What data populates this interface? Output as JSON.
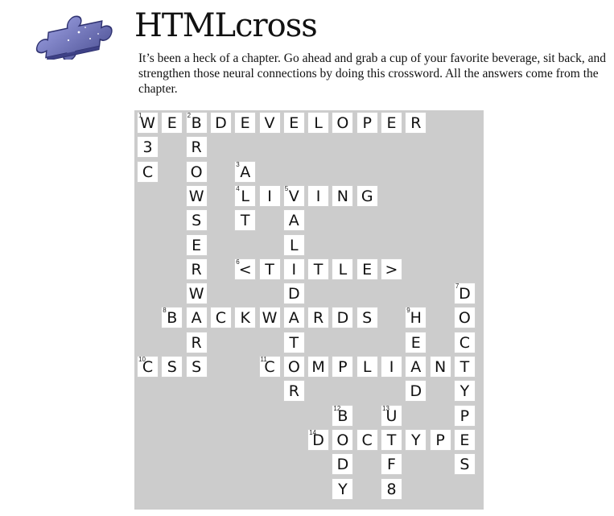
{
  "header": {
    "title": "HTMLcross",
    "intro": "It’s been a heck of a chapter. Go ahead and grab a cup of your favorite beverage, sit back, and strengthen those neural connections by doing this crossword. All the answers come from the chapter."
  },
  "logo": {
    "icon": "puzzle-piece-icon",
    "color": "#6b6fb8"
  },
  "colors": {
    "board": "#cccccc",
    "cell": "#ffffff"
  },
  "puzzle": {
    "cells": [
      {
        "r": 0,
        "c": 0,
        "l": "W",
        "n": "1"
      },
      {
        "r": 0,
        "c": 1,
        "l": "E"
      },
      {
        "r": 0,
        "c": 2,
        "l": "B",
        "n": "2"
      },
      {
        "r": 0,
        "c": 3,
        "l": "D"
      },
      {
        "r": 0,
        "c": 4,
        "l": "E"
      },
      {
        "r": 0,
        "c": 5,
        "l": "V"
      },
      {
        "r": 0,
        "c": 6,
        "l": "E"
      },
      {
        "r": 0,
        "c": 7,
        "l": "L"
      },
      {
        "r": 0,
        "c": 8,
        "l": "O"
      },
      {
        "r": 0,
        "c": 9,
        "l": "P"
      },
      {
        "r": 0,
        "c": 10,
        "l": "E"
      },
      {
        "r": 0,
        "c": 11,
        "l": "R"
      },
      {
        "r": 1,
        "c": 0,
        "l": "3"
      },
      {
        "r": 1,
        "c": 2,
        "l": "R"
      },
      {
        "r": 2,
        "c": 0,
        "l": "C"
      },
      {
        "r": 2,
        "c": 2,
        "l": "O"
      },
      {
        "r": 2,
        "c": 4,
        "l": "A",
        "n": "3"
      },
      {
        "r": 3,
        "c": 2,
        "l": "W"
      },
      {
        "r": 3,
        "c": 4,
        "l": "L",
        "n": "4"
      },
      {
        "r": 3,
        "c": 5,
        "l": "I"
      },
      {
        "r": 3,
        "c": 6,
        "l": "V",
        "n": "5"
      },
      {
        "r": 3,
        "c": 7,
        "l": "I"
      },
      {
        "r": 3,
        "c": 8,
        "l": "N"
      },
      {
        "r": 3,
        "c": 9,
        "l": "G"
      },
      {
        "r": 4,
        "c": 2,
        "l": "S"
      },
      {
        "r": 4,
        "c": 4,
        "l": "T"
      },
      {
        "r": 4,
        "c": 6,
        "l": "A"
      },
      {
        "r": 5,
        "c": 2,
        "l": "E"
      },
      {
        "r": 5,
        "c": 6,
        "l": "L"
      },
      {
        "r": 6,
        "c": 2,
        "l": "R"
      },
      {
        "r": 6,
        "c": 4,
        "l": "<",
        "n": "6"
      },
      {
        "r": 6,
        "c": 5,
        "l": "T"
      },
      {
        "r": 6,
        "c": 6,
        "l": "I"
      },
      {
        "r": 6,
        "c": 7,
        "l": "T"
      },
      {
        "r": 6,
        "c": 8,
        "l": "L"
      },
      {
        "r": 6,
        "c": 9,
        "l": "E"
      },
      {
        "r": 6,
        "c": 10,
        "l": ">"
      },
      {
        "r": 7,
        "c": 2,
        "l": "W"
      },
      {
        "r": 7,
        "c": 6,
        "l": "D"
      },
      {
        "r": 7,
        "c": 13,
        "l": "D",
        "n": "7"
      },
      {
        "r": 8,
        "c": 1,
        "l": "B",
        "n": "8"
      },
      {
        "r": 8,
        "c": 2,
        "l": "A"
      },
      {
        "r": 8,
        "c": 3,
        "l": "C"
      },
      {
        "r": 8,
        "c": 4,
        "l": "K"
      },
      {
        "r": 8,
        "c": 5,
        "l": "W"
      },
      {
        "r": 8,
        "c": 6,
        "l": "A"
      },
      {
        "r": 8,
        "c": 7,
        "l": "R"
      },
      {
        "r": 8,
        "c": 8,
        "l": "D"
      },
      {
        "r": 8,
        "c": 9,
        "l": "S"
      },
      {
        "r": 8,
        "c": 11,
        "l": "H",
        "n": "9"
      },
      {
        "r": 8,
        "c": 13,
        "l": "O"
      },
      {
        "r": 9,
        "c": 2,
        "l": "R"
      },
      {
        "r": 9,
        "c": 6,
        "l": "T"
      },
      {
        "r": 9,
        "c": 11,
        "l": "E"
      },
      {
        "r": 9,
        "c": 13,
        "l": "C"
      },
      {
        "r": 10,
        "c": 0,
        "l": "C",
        "n": "10"
      },
      {
        "r": 10,
        "c": 1,
        "l": "S"
      },
      {
        "r": 10,
        "c": 2,
        "l": "S"
      },
      {
        "r": 10,
        "c": 5,
        "l": "C",
        "n": "11"
      },
      {
        "r": 10,
        "c": 6,
        "l": "O"
      },
      {
        "r": 10,
        "c": 7,
        "l": "M"
      },
      {
        "r": 10,
        "c": 8,
        "l": "P"
      },
      {
        "r": 10,
        "c": 9,
        "l": "L"
      },
      {
        "r": 10,
        "c": 10,
        "l": "I"
      },
      {
        "r": 10,
        "c": 11,
        "l": "A"
      },
      {
        "r": 10,
        "c": 12,
        "l": "N"
      },
      {
        "r": 10,
        "c": 13,
        "l": "T"
      },
      {
        "r": 11,
        "c": 6,
        "l": "R"
      },
      {
        "r": 11,
        "c": 11,
        "l": "D"
      },
      {
        "r": 11,
        "c": 13,
        "l": "Y"
      },
      {
        "r": 12,
        "c": 8,
        "l": "B",
        "n": "12"
      },
      {
        "r": 12,
        "c": 10,
        "l": "U",
        "n": "13"
      },
      {
        "r": 12,
        "c": 13,
        "l": "P"
      },
      {
        "r": 13,
        "c": 7,
        "l": "D",
        "n": "14"
      },
      {
        "r": 13,
        "c": 8,
        "l": "O"
      },
      {
        "r": 13,
        "c": 9,
        "l": "C"
      },
      {
        "r": 13,
        "c": 10,
        "l": "T"
      },
      {
        "r": 13,
        "c": 11,
        "l": "Y"
      },
      {
        "r": 13,
        "c": 12,
        "l": "P"
      },
      {
        "r": 13,
        "c": 13,
        "l": "E"
      },
      {
        "r": 14,
        "c": 8,
        "l": "D"
      },
      {
        "r": 14,
        "c": 10,
        "l": "F"
      },
      {
        "r": 14,
        "c": 13,
        "l": "S"
      },
      {
        "r": 15,
        "c": 8,
        "l": "Y"
      },
      {
        "r": 15,
        "c": 10,
        "l": "8"
      }
    ]
  }
}
